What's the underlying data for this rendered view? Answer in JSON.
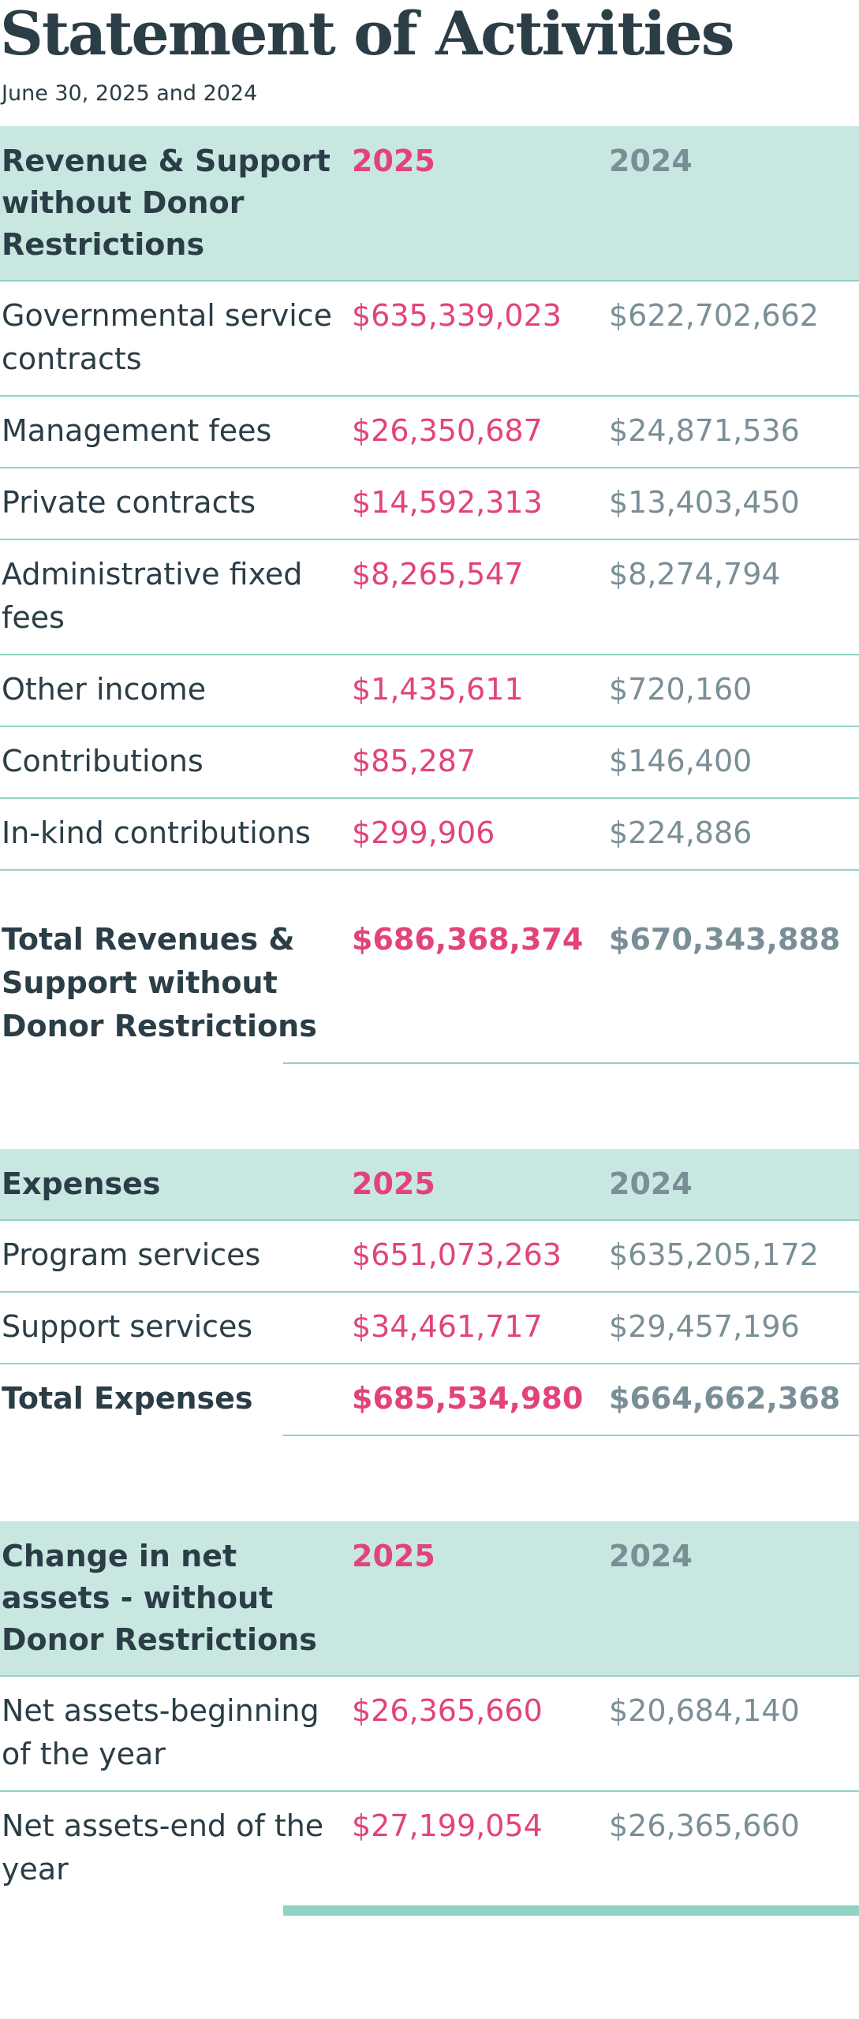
{
  "title": "Statement of Activities",
  "subtitle": "June 30, 2025 and 2024",
  "sections": [
    {
      "header": [
        "Revenue & Support without Donor Restrictions",
        "2025",
        "2024"
      ],
      "rows": [
        [
          "Governmental service contracts",
          "$635,339,023",
          "$622,702,662"
        ],
        [
          "Management fees",
          "$26,350,687",
          "$24,871,536"
        ],
        [
          "Private contracts",
          "$14,592,313",
          "$13,403,450"
        ],
        [
          "Administrative fixed fees",
          "$8,265,547",
          "$8,274,794"
        ],
        [
          "Other income",
          "$1,435,611",
          "$720,160"
        ],
        [
          "Contributions",
          "$85,287",
          "$146,400"
        ],
        [
          "In-kind contributions",
          "$299,906",
          "$224,886"
        ]
      ],
      "total": [
        "Total Revenues & Support without Donor Restrictions",
        "$686,368,374",
        "$670,343,888"
      ]
    },
    {
      "header": [
        "Expenses",
        "2025",
        "2024"
      ],
      "rows": [
        [
          "Program services",
          "$651,073,263",
          "$635,205,172"
        ],
        [
          "Support services",
          "$34,461,717",
          "$29,457,196"
        ]
      ],
      "total": [
        "Total Expenses",
        "$685,534,980",
        "$664,662,368"
      ]
    },
    {
      "header": [
        "Change in net assets - without Donor Restrictions",
        "2025",
        "2024"
      ],
      "rows": [
        [
          "Net assets-beginning of the year",
          "$26,365,660",
          "$20,684,140"
        ],
        [
          "Net assets-end of the year",
          "$27,199,054",
          "$26,365,660"
        ]
      ]
    }
  ]
}
